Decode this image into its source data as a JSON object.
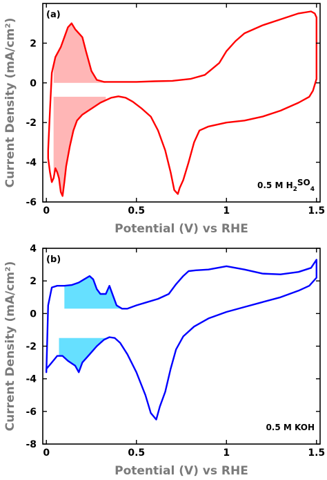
{
  "chart_data": [
    {
      "type": "line",
      "panel_label": "(a)",
      "annotation": {
        "prefix": "0.5 M H",
        "sub1": "2",
        "mid": "SO",
        "sub2": "4"
      },
      "xlabel": "Potential (V) vs RHE",
      "ylabel": "Current Density (mA/cm²)",
      "xlim": [
        -0.02,
        1.52
      ],
      "ylim": [
        -6,
        4
      ],
      "xticks": [
        0,
        0.5,
        1,
        1.5
      ],
      "xtick_labels": [
        "0",
        "0.5",
        "1",
        "1.5"
      ],
      "yticks": [
        -6,
        -4,
        -2,
        0,
        2
      ],
      "ytick_labels": [
        "-6",
        "-4",
        "-2",
        "0",
        "2"
      ],
      "line_color": "#ff0000",
      "fill_color": "#ffb6b6",
      "series": [
        {
          "x": [
            0.02,
            0.03,
            0.05,
            0.08,
            0.1,
            0.12,
            0.14,
            0.16,
            0.18,
            0.2,
            0.22,
            0.25,
            0.28,
            0.32,
            0.4,
            0.5,
            0.6,
            0.7,
            0.8,
            0.88,
            0.92,
            0.96,
            1.0,
            1.05,
            1.1,
            1.2,
            1.3,
            1.4,
            1.47,
            1.49,
            1.5,
            1.5,
            1.48,
            1.46,
            1.4,
            1.3,
            1.2,
            1.1,
            1.0,
            0.95,
            0.9,
            0.85,
            0.82,
            0.79,
            0.76,
            0.74,
            0.73,
            0.71,
            0.69,
            0.66,
            0.62,
            0.58,
            0.53,
            0.48,
            0.44,
            0.4,
            0.36,
            0.3,
            0.25,
            0.2,
            0.17,
            0.15,
            0.13,
            0.11,
            0.1,
            0.09,
            0.08,
            0.07,
            0.06,
            0.05,
            0.04,
            0.03,
            0.02,
            0.01,
            0.01,
            0.02
          ],
          "y": [
            -1.4,
            0.5,
            1.3,
            1.8,
            2.3,
            2.8,
            3.0,
            2.7,
            2.5,
            2.3,
            1.6,
            0.6,
            0.15,
            0.05,
            0.05,
            0.05,
            0.08,
            0.1,
            0.2,
            0.4,
            0.7,
            1.0,
            1.6,
            2.1,
            2.5,
            2.9,
            3.2,
            3.5,
            3.6,
            3.5,
            3.3,
            0.2,
            -0.4,
            -0.7,
            -1.0,
            -1.4,
            -1.7,
            -1.9,
            -2.0,
            -2.1,
            -2.2,
            -2.4,
            -3.0,
            -4.0,
            -4.9,
            -5.3,
            -5.6,
            -5.4,
            -4.5,
            -3.4,
            -2.4,
            -1.7,
            -1.3,
            -0.95,
            -0.75,
            -0.68,
            -0.75,
            -1.0,
            -1.3,
            -1.6,
            -1.9,
            -2.4,
            -3.2,
            -4.2,
            -5.0,
            -5.7,
            -5.5,
            -4.8,
            -4.5,
            -4.3,
            -4.8,
            -5.0,
            -4.5,
            -3.8,
            -3.4,
            -1.4
          ]
        }
      ]
    },
    {
      "type": "line",
      "panel_label": "(b)",
      "annotation": {
        "prefix": "0.5 M KOH",
        "sub1": "",
        "mid": "",
        "sub2": ""
      },
      "xlabel": "Potential (V) vs RHE",
      "ylabel": "Current Density (mA/cm²)",
      "xlim": [
        -0.02,
        1.52
      ],
      "ylim": [
        -8,
        4
      ],
      "xticks": [
        0,
        0.5,
        1,
        1.5
      ],
      "xtick_labels": [
        "0",
        "0.5",
        "1",
        "1.5"
      ],
      "yticks": [
        -8,
        -6,
        -4,
        -2,
        0,
        2,
        4
      ],
      "ytick_labels": [
        "-8",
        "-6",
        "-4",
        "-2",
        "0",
        "2",
        "4"
      ],
      "line_color": "#0000ff",
      "fill_color": "#66e0ff",
      "series": [
        {
          "x": [
            0.0,
            0.01,
            0.03,
            0.06,
            0.1,
            0.14,
            0.18,
            0.21,
            0.24,
            0.26,
            0.28,
            0.3,
            0.33,
            0.35,
            0.37,
            0.39,
            0.42,
            0.45,
            0.5,
            0.56,
            0.62,
            0.68,
            0.72,
            0.76,
            0.79,
            0.83,
            0.9,
            1.0,
            1.1,
            1.2,
            1.3,
            1.4,
            1.47,
            1.5,
            1.5,
            1.46,
            1.4,
            1.3,
            1.2,
            1.1,
            1.0,
            0.9,
            0.82,
            0.76,
            0.72,
            0.69,
            0.66,
            0.63,
            0.61,
            0.58,
            0.55,
            0.5,
            0.45,
            0.41,
            0.38,
            0.35,
            0.32,
            0.28,
            0.24,
            0.2,
            0.18,
            0.16,
            0.12,
            0.09,
            0.06,
            0.03,
            0.0,
            0.0
          ],
          "y": [
            -3.6,
            0.5,
            1.6,
            1.7,
            1.7,
            1.75,
            1.9,
            2.1,
            2.3,
            2.1,
            1.5,
            1.2,
            1.2,
            1.7,
            1.1,
            0.5,
            0.3,
            0.3,
            0.5,
            0.7,
            0.9,
            1.2,
            1.8,
            2.3,
            2.6,
            2.65,
            2.7,
            2.9,
            2.7,
            2.45,
            2.4,
            2.55,
            2.8,
            3.3,
            2.2,
            1.7,
            1.4,
            1.0,
            0.7,
            0.4,
            0.1,
            -0.3,
            -0.8,
            -1.4,
            -2.2,
            -3.4,
            -4.8,
            -5.7,
            -6.5,
            -6.1,
            -5.0,
            -3.6,
            -2.5,
            -1.8,
            -1.5,
            -1.45,
            -1.6,
            -2.0,
            -2.5,
            -3.0,
            -3.6,
            -3.2,
            -2.9,
            -2.6,
            -2.6,
            -3.0,
            -3.4,
            -3.6
          ]
        }
      ]
    }
  ]
}
